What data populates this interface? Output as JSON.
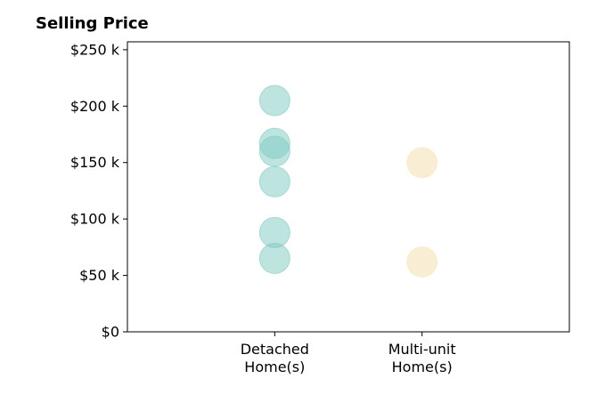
{
  "chart_data": {
    "type": "scatter",
    "title": "Selling Price",
    "xlabel": "",
    "ylabel": "",
    "categories": [
      "Detached\nHome(s)",
      "Multi-unit\nHome(s)"
    ],
    "y_ticks": [
      0,
      50000,
      100000,
      150000,
      200000,
      250000
    ],
    "y_tick_labels": [
      "$0",
      "$50 k",
      "$100 k",
      "$150 k",
      "$200 k",
      "$250 k"
    ],
    "ylim": [
      0,
      257000
    ],
    "x_range": [
      -1,
      2
    ],
    "grid": false,
    "series": [
      {
        "category_index": 0,
        "color": "#7dc9c1",
        "values": [
          205000,
          167000,
          160000,
          133000,
          88000,
          65000
        ]
      },
      {
        "category_index": 1,
        "color": "#f7e6c0",
        "values": [
          150000,
          62000
        ]
      }
    ]
  }
}
